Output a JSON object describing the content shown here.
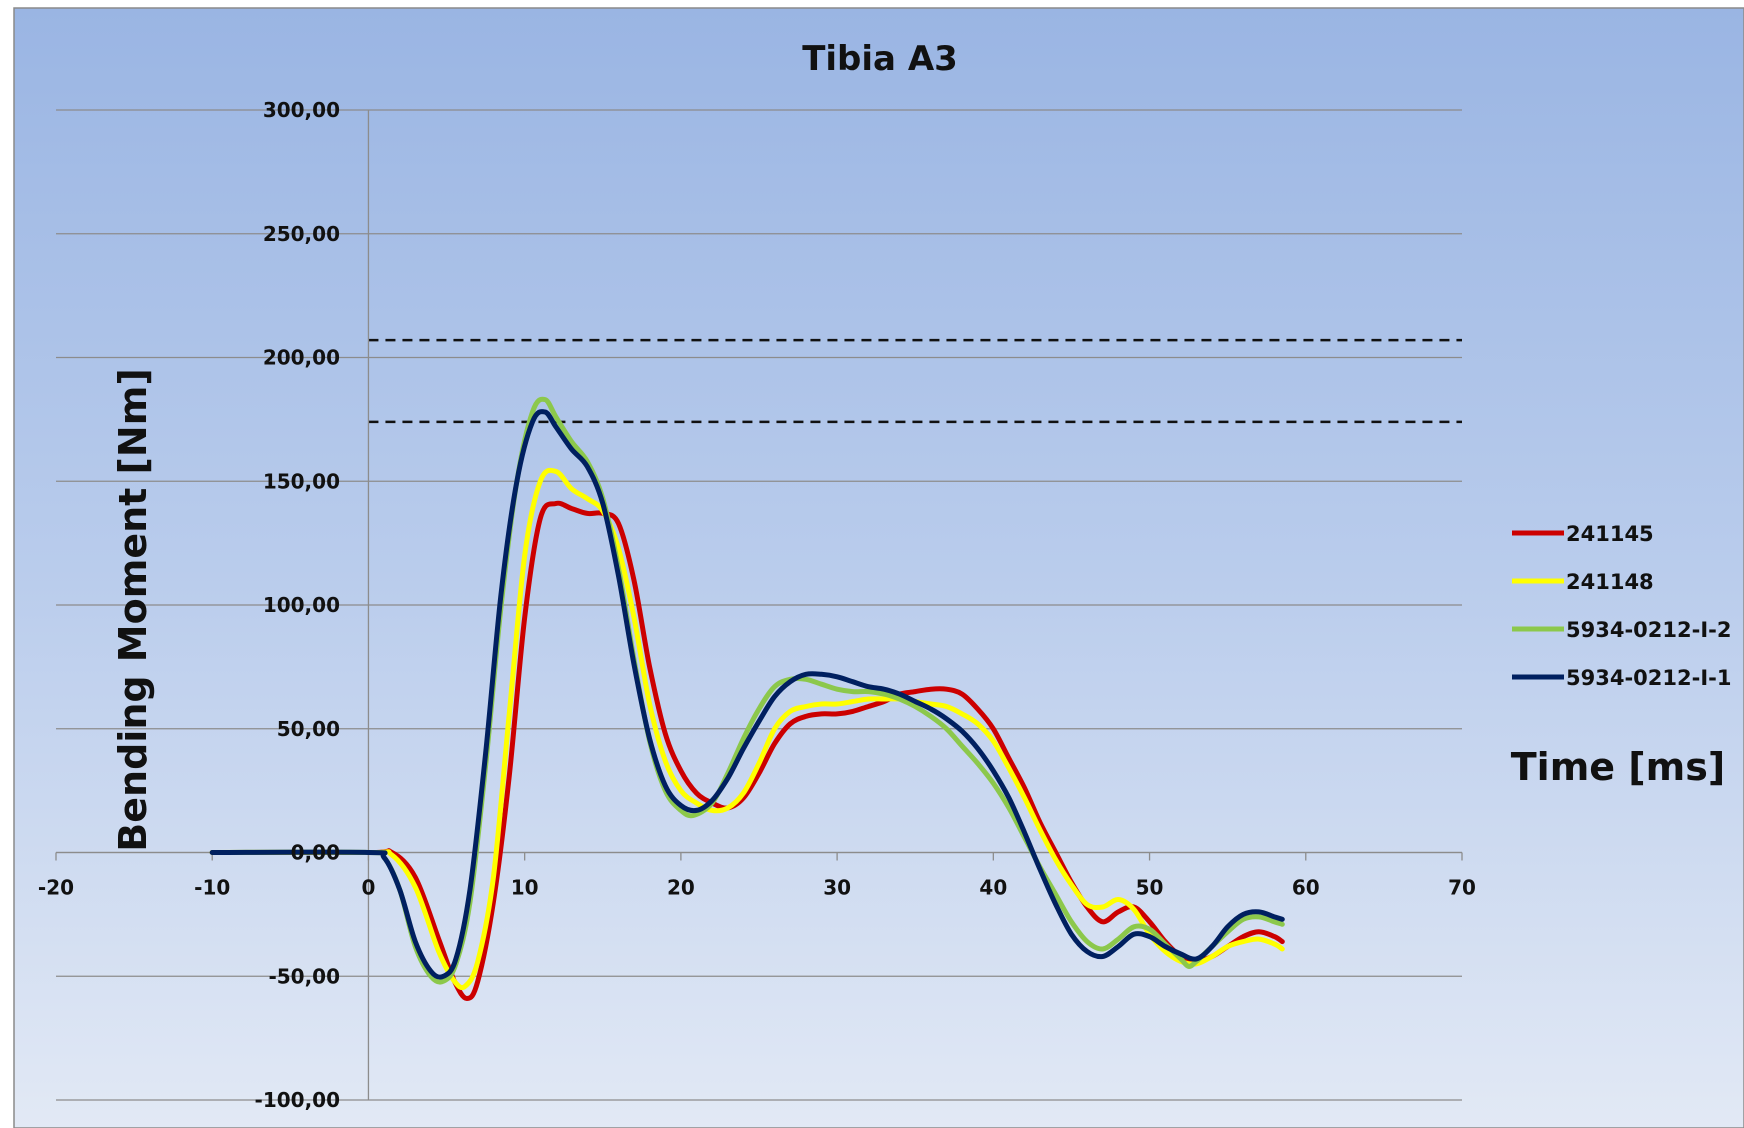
{
  "chart_data": {
    "type": "line",
    "title": "Tibia A3",
    "xlabel": "Time [ms]",
    "ylabel": "Bending Moment [Nm]",
    "xlim": [
      -20,
      70
    ],
    "ylim": [
      -100,
      300
    ],
    "xticks": [
      "-20",
      "-10",
      "0",
      "10",
      "20",
      "30",
      "40",
      "50",
      "60",
      "70"
    ],
    "yticks": [
      "-100,00",
      "-50,00",
      "0,00",
      "50,00",
      "100,00",
      "150,00",
      "200,00",
      "250,00",
      "300,00"
    ],
    "grid": "horizontal",
    "legend_position": "right",
    "reference_lines": [
      207,
      174
    ],
    "series": [
      {
        "name": "241145",
        "color": "#cc0000",
        "points": [
          [
            -10,
            0
          ],
          [
            0,
            0
          ],
          [
            1.5,
            0
          ],
          [
            3,
            -10
          ],
          [
            4.5,
            -35
          ],
          [
            5.5,
            -52
          ],
          [
            6.3,
            -59
          ],
          [
            7,
            -52
          ],
          [
            8,
            -20
          ],
          [
            9,
            30
          ],
          [
            10,
            95
          ],
          [
            11,
            135
          ],
          [
            12,
            141
          ],
          [
            13,
            139
          ],
          [
            14,
            137
          ],
          [
            15,
            137
          ],
          [
            16,
            133
          ],
          [
            17,
            110
          ],
          [
            18,
            75
          ],
          [
            19,
            48
          ],
          [
            20,
            33
          ],
          [
            21,
            24
          ],
          [
            22,
            20
          ],
          [
            23,
            18
          ],
          [
            24,
            22
          ],
          [
            25,
            32
          ],
          [
            26,
            44
          ],
          [
            27,
            52
          ],
          [
            28,
            55
          ],
          [
            29,
            56
          ],
          [
            30,
            56
          ],
          [
            31,
            57
          ],
          [
            32,
            59
          ],
          [
            33,
            61
          ],
          [
            34,
            64
          ],
          [
            35,
            65
          ],
          [
            36,
            66
          ],
          [
            37,
            66
          ],
          [
            38,
            64
          ],
          [
            39,
            58
          ],
          [
            40,
            50
          ],
          [
            41,
            38
          ],
          [
            42,
            26
          ],
          [
            43,
            12
          ],
          [
            44,
            0
          ],
          [
            45,
            -12
          ],
          [
            46,
            -22
          ],
          [
            47,
            -28
          ],
          [
            48,
            -24
          ],
          [
            49,
            -22
          ],
          [
            50,
            -28
          ],
          [
            51,
            -36
          ],
          [
            52,
            -42
          ],
          [
            53,
            -44
          ],
          [
            54,
            -42
          ],
          [
            55,
            -38
          ],
          [
            56,
            -34
          ],
          [
            57,
            -32
          ],
          [
            58,
            -34
          ],
          [
            58.5,
            -36
          ]
        ]
      },
      {
        "name": "241148",
        "color": "#ffff00",
        "points": [
          [
            -10,
            0
          ],
          [
            0,
            0
          ],
          [
            1.5,
            -1
          ],
          [
            3,
            -14
          ],
          [
            4.5,
            -40
          ],
          [
            5.5,
            -52
          ],
          [
            6.2,
            -54
          ],
          [
            7,
            -44
          ],
          [
            8,
            -10
          ],
          [
            9,
            55
          ],
          [
            10,
            120
          ],
          [
            11,
            150
          ],
          [
            12,
            154
          ],
          [
            13,
            147
          ],
          [
            14,
            143
          ],
          [
            15,
            138
          ],
          [
            16,
            123
          ],
          [
            17,
            95
          ],
          [
            18,
            60
          ],
          [
            19,
            37
          ],
          [
            20,
            25
          ],
          [
            21,
            20
          ],
          [
            22,
            17
          ],
          [
            23,
            18
          ],
          [
            24,
            24
          ],
          [
            25,
            36
          ],
          [
            26,
            50
          ],
          [
            27,
            57
          ],
          [
            28,
            59
          ],
          [
            29,
            60
          ],
          [
            30,
            60
          ],
          [
            31,
            61
          ],
          [
            32,
            62
          ],
          [
            33,
            62
          ],
          [
            34,
            62
          ],
          [
            35,
            61
          ],
          [
            36,
            60
          ],
          [
            37,
            59
          ],
          [
            38,
            56
          ],
          [
            39,
            52
          ],
          [
            40,
            45
          ],
          [
            41,
            34
          ],
          [
            42,
            22
          ],
          [
            43,
            9
          ],
          [
            44,
            -3
          ],
          [
            45,
            -13
          ],
          [
            46,
            -21
          ],
          [
            47,
            -22
          ],
          [
            48,
            -19
          ],
          [
            49,
            -23
          ],
          [
            50,
            -33
          ],
          [
            51,
            -40
          ],
          [
            52,
            -44
          ],
          [
            53,
            -45
          ],
          [
            54,
            -42
          ],
          [
            55,
            -38
          ],
          [
            56,
            -36
          ],
          [
            57,
            -35
          ],
          [
            58,
            -37
          ],
          [
            58.5,
            -39
          ]
        ]
      },
      {
        "name": "5934-0212-I-2",
        "color": "#8cc84b",
        "points": [
          [
            -10,
            0
          ],
          [
            0,
            0
          ],
          [
            1,
            -2
          ],
          [
            2,
            -15
          ],
          [
            3,
            -38
          ],
          [
            4,
            -50
          ],
          [
            4.8,
            -52
          ],
          [
            5.6,
            -45
          ],
          [
            6.5,
            -20
          ],
          [
            7.5,
            35
          ],
          [
            8.5,
            100
          ],
          [
            9.5,
            150
          ],
          [
            10.5,
            178
          ],
          [
            11.3,
            183
          ],
          [
            12,
            176
          ],
          [
            13,
            166
          ],
          [
            14,
            158
          ],
          [
            15,
            143
          ],
          [
            16,
            115
          ],
          [
            17,
            78
          ],
          [
            18,
            45
          ],
          [
            19,
            25
          ],
          [
            20,
            17
          ],
          [
            20.8,
            15
          ],
          [
            22,
            20
          ],
          [
            23,
            32
          ],
          [
            24,
            46
          ],
          [
            25,
            58
          ],
          [
            26,
            67
          ],
          [
            27,
            70
          ],
          [
            28,
            70
          ],
          [
            29,
            68
          ],
          [
            30,
            66
          ],
          [
            31,
            65
          ],
          [
            32,
            65
          ],
          [
            33,
            64
          ],
          [
            34,
            62
          ],
          [
            35,
            59
          ],
          [
            36,
            55
          ],
          [
            37,
            50
          ],
          [
            38,
            43
          ],
          [
            39,
            36
          ],
          [
            40,
            28
          ],
          [
            41,
            18
          ],
          [
            42,
            6
          ],
          [
            43,
            -6
          ],
          [
            44,
            -17
          ],
          [
            45,
            -28
          ],
          [
            46,
            -36
          ],
          [
            47,
            -39
          ],
          [
            48,
            -35
          ],
          [
            49,
            -30
          ],
          [
            50,
            -31
          ],
          [
            51,
            -37
          ],
          [
            52,
            -43
          ],
          [
            52.5,
            -46
          ],
          [
            53,
            -44
          ],
          [
            54,
            -38
          ],
          [
            55,
            -32
          ],
          [
            56,
            -27
          ],
          [
            57,
            -26
          ],
          [
            58,
            -28
          ],
          [
            58.5,
            -29
          ]
        ]
      },
      {
        "name": "5934-0212-I-1",
        "color": "#002060",
        "points": [
          [
            -10,
            0
          ],
          [
            0,
            0
          ],
          [
            1,
            -2
          ],
          [
            2,
            -15
          ],
          [
            3,
            -36
          ],
          [
            4,
            -48
          ],
          [
            4.8,
            -50
          ],
          [
            5.6,
            -43
          ],
          [
            6.5,
            -15
          ],
          [
            7.5,
            40
          ],
          [
            8.5,
            105
          ],
          [
            9.5,
            150
          ],
          [
            10.5,
            174
          ],
          [
            11.3,
            178
          ],
          [
            12,
            172
          ],
          [
            13,
            163
          ],
          [
            14,
            156
          ],
          [
            15,
            141
          ],
          [
            16,
            112
          ],
          [
            17,
            76
          ],
          [
            18,
            46
          ],
          [
            19,
            27
          ],
          [
            20,
            19
          ],
          [
            21,
            17
          ],
          [
            22,
            21
          ],
          [
            23,
            30
          ],
          [
            24,
            42
          ],
          [
            25,
            53
          ],
          [
            26,
            63
          ],
          [
            27,
            69
          ],
          [
            28,
            72
          ],
          [
            29,
            72
          ],
          [
            30,
            71
          ],
          [
            31,
            69
          ],
          [
            32,
            67
          ],
          [
            33,
            66
          ],
          [
            34,
            64
          ],
          [
            35,
            61
          ],
          [
            36,
            58
          ],
          [
            37,
            54
          ],
          [
            38,
            49
          ],
          [
            39,
            42
          ],
          [
            40,
            33
          ],
          [
            41,
            22
          ],
          [
            42,
            8
          ],
          [
            43,
            -7
          ],
          [
            44,
            -21
          ],
          [
            45,
            -33
          ],
          [
            46,
            -40
          ],
          [
            47,
            -42
          ],
          [
            48,
            -38
          ],
          [
            49,
            -33
          ],
          [
            50,
            -34
          ],
          [
            51,
            -38
          ],
          [
            52,
            -41
          ],
          [
            53,
            -43
          ],
          [
            54,
            -38
          ],
          [
            55,
            -30
          ],
          [
            56,
            -25
          ],
          [
            57,
            -24
          ],
          [
            58,
            -26
          ],
          [
            58.5,
            -27
          ]
        ]
      }
    ]
  }
}
